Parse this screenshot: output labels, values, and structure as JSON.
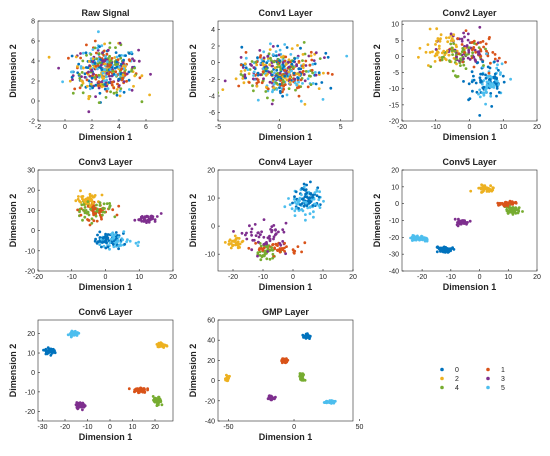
{
  "figure": {
    "colors": {
      "0": "#0072BD",
      "1": "#D95319",
      "2": "#EDB120",
      "3": "#7E2F8E",
      "4": "#77AC30",
      "5": "#4DBEEE"
    },
    "legend": {
      "entries": [
        "0",
        "1",
        "2",
        "3",
        "4",
        "5"
      ],
      "placement": "bottom-right"
    }
  },
  "chart_data": [
    {
      "type": "scatter",
      "title": "Raw Signal",
      "xlabel": "Dimension 1",
      "ylabel": "Dimension 2",
      "xlim": [
        -2,
        8
      ],
      "ylim": [
        -2,
        8
      ],
      "xticks": [
        "-2",
        "0",
        "2",
        "4",
        "6"
      ],
      "yticks": [
        "-2",
        "0",
        "2",
        "4",
        "6",
        "8"
      ],
      "clusters": [
        {
          "class": "0",
          "center": [
            3,
            3
          ],
          "spread": [
            2.0,
            2.0
          ],
          "n": 70
        },
        {
          "class": "1",
          "center": [
            3,
            3
          ],
          "spread": [
            2.0,
            2.0
          ],
          "n": 70
        },
        {
          "class": "2",
          "center": [
            3,
            3
          ],
          "spread": [
            2.0,
            2.0
          ],
          "n": 70
        },
        {
          "class": "3",
          "center": [
            3,
            3
          ],
          "spread": [
            2.0,
            2.0
          ],
          "n": 70
        },
        {
          "class": "4",
          "center": [
            3,
            3
          ],
          "spread": [
            2.0,
            2.0
          ],
          "n": 70
        },
        {
          "class": "5",
          "center": [
            3,
            3
          ],
          "spread": [
            2.0,
            2.0
          ],
          "n": 70
        }
      ]
    },
    {
      "type": "scatter",
      "title": "Conv1 Layer",
      "xlabel": "Dimension 1",
      "ylabel": "Dimension 2",
      "xlim": [
        -5,
        6
      ],
      "ylim": [
        -7,
        5
      ],
      "xticks": [
        "-5",
        "0",
        "5"
      ],
      "yticks": [
        "-6",
        "-4",
        "-2",
        "0",
        "2",
        "4"
      ],
      "clusters": [
        {
          "class": "0",
          "center": [
            0,
            -1
          ],
          "spread": [
            2.6,
            2.4
          ],
          "n": 70
        },
        {
          "class": "1",
          "center": [
            0,
            -1
          ],
          "spread": [
            2.6,
            2.4
          ],
          "n": 70
        },
        {
          "class": "2",
          "center": [
            0,
            -1
          ],
          "spread": [
            2.6,
            2.4
          ],
          "n": 70
        },
        {
          "class": "3",
          "center": [
            0,
            -1
          ],
          "spread": [
            2.6,
            2.4
          ],
          "n": 70
        },
        {
          "class": "4",
          "center": [
            0,
            -1
          ],
          "spread": [
            2.6,
            2.4
          ],
          "n": 70
        },
        {
          "class": "5",
          "center": [
            0,
            -1
          ],
          "spread": [
            2.6,
            2.4
          ],
          "n": 70
        }
      ]
    },
    {
      "type": "scatter",
      "title": "Conv2 Layer",
      "xlabel": "Dimension 1",
      "ylabel": "Dimension 2",
      "xlim": [
        -20,
        20
      ],
      "ylim": [
        -20,
        11
      ],
      "xticks": [
        "-20",
        "-10",
        "0",
        "10",
        "20"
      ],
      "yticks": [
        "-20",
        "-15",
        "-10",
        "-5",
        "0",
        "5",
        "10"
      ],
      "clusters": [
        {
          "class": "0",
          "center": [
            5,
            -7
          ],
          "spread": [
            4,
            5
          ],
          "n": 60
        },
        {
          "class": "1",
          "center": [
            2,
            2
          ],
          "spread": [
            6,
            5
          ],
          "n": 45
        },
        {
          "class": "2",
          "center": [
            -8,
            2
          ],
          "spread": [
            5,
            4
          ],
          "n": 55
        },
        {
          "class": "3",
          "center": [
            -1,
            2
          ],
          "spread": [
            6,
            5
          ],
          "n": 50
        },
        {
          "class": "4",
          "center": [
            -4,
            0
          ],
          "spread": [
            5,
            4
          ],
          "n": 50
        },
        {
          "class": "5",
          "center": [
            6,
            -8
          ],
          "spread": [
            4,
            5
          ],
          "n": 60
        }
      ]
    },
    {
      "type": "scatter",
      "title": "Conv3 Layer",
      "xlabel": "Dimension 1",
      "ylabel": "Dimension 2",
      "xlim": [
        -20,
        20
      ],
      "ylim": [
        -20,
        30
      ],
      "xticks": [
        "-20",
        "-10",
        "0",
        "10",
        "20"
      ],
      "yticks": [
        "-20",
        "-10",
        "0",
        "10",
        "20",
        "30"
      ],
      "clusters": [
        {
          "class": "0",
          "center": [
            0,
            -5
          ],
          "spread": [
            3.5,
            3
          ],
          "n": 60
        },
        {
          "class": "1",
          "center": [
            -3,
            10
          ],
          "spread": [
            5,
            4
          ],
          "n": 45
        },
        {
          "class": "2",
          "center": [
            -5,
            15
          ],
          "spread": [
            3,
            2.5
          ],
          "n": 45
        },
        {
          "class": "3",
          "center": [
            12,
            6
          ],
          "spread": [
            3,
            2
          ],
          "n": 40
        },
        {
          "class": "4",
          "center": [
            -3,
            10
          ],
          "spread": [
            4,
            4
          ],
          "n": 45
        },
        {
          "class": "5",
          "center": [
            3,
            -5
          ],
          "spread": [
            4,
            3
          ],
          "n": 55
        }
      ]
    },
    {
      "type": "scatter",
      "title": "Conv4 Layer",
      "xlabel": "Dimension 1",
      "ylabel": "Dimension 2",
      "xlim": [
        -25,
        20
      ],
      "ylim": [
        -16,
        20
      ],
      "xticks": [
        "-20",
        "-10",
        "0",
        "10",
        "20"
      ],
      "yticks": [
        "-10",
        "0",
        "10",
        "20"
      ],
      "clusters": [
        {
          "class": "0",
          "center": [
            5,
            10
          ],
          "spread": [
            4,
            3.5
          ],
          "n": 60
        },
        {
          "class": "1",
          "center": [
            -5,
            -8
          ],
          "spread": [
            6,
            2
          ],
          "n": 40
        },
        {
          "class": "2",
          "center": [
            -19,
            -6
          ],
          "spread": [
            2.5,
            2
          ],
          "n": 35
        },
        {
          "class": "3",
          "center": [
            -9,
            -4
          ],
          "spread": [
            6,
            4
          ],
          "n": 55
        },
        {
          "class": "4",
          "center": [
            -9,
            -9
          ],
          "spread": [
            3,
            2.5
          ],
          "n": 40
        },
        {
          "class": "5",
          "center": [
            4,
            8
          ],
          "spread": [
            5,
            4
          ],
          "n": 60
        }
      ]
    },
    {
      "type": "scatter",
      "title": "Conv5 Layer",
      "xlabel": "Dimension 1",
      "ylabel": "Dimension 2",
      "xlim": [
        -27,
        20
      ],
      "ylim": [
        -40,
        20
      ],
      "xticks": [
        "-20",
        "-10",
        "0",
        "10",
        "20"
      ],
      "yticks": [
        "-40",
        "-30",
        "-20",
        "-10",
        "0",
        "10",
        "20"
      ],
      "clusters": [
        {
          "class": "0",
          "center": [
            -12,
            -27
          ],
          "spread": [
            2.5,
            1.5
          ],
          "n": 55
        },
        {
          "class": "1",
          "center": [
            10,
            0
          ],
          "spread": [
            3,
            1.2
          ],
          "n": 40
        },
        {
          "class": "2",
          "center": [
            2,
            9
          ],
          "spread": [
            2.5,
            1.5
          ],
          "n": 40
        },
        {
          "class": "3",
          "center": [
            -6,
            -11
          ],
          "spread": [
            2,
            1.5
          ],
          "n": 35
        },
        {
          "class": "4",
          "center": [
            11,
            -4
          ],
          "spread": [
            2,
            2
          ],
          "n": 45
        },
        {
          "class": "5",
          "center": [
            -21,
            -21
          ],
          "spread": [
            2.5,
            1.5
          ],
          "n": 55
        }
      ]
    },
    {
      "type": "scatter",
      "title": "Conv6 Layer",
      "xlabel": "Dimension 1",
      "ylabel": "Dimension 2",
      "xlim": [
        -32,
        28
      ],
      "ylim": [
        -25,
        27
      ],
      "xticks": [
        "-30",
        "-20",
        "-10",
        "0",
        "10",
        "20"
      ],
      "yticks": [
        "-20",
        "-10",
        "0",
        "10",
        "20"
      ],
      "clusters": [
        {
          "class": "0",
          "center": [
            -27,
            11
          ],
          "spread": [
            1.8,
            1.2
          ],
          "n": 55
        },
        {
          "class": "1",
          "center": [
            13,
            -9
          ],
          "spread": [
            2.5,
            1.2
          ],
          "n": 40
        },
        {
          "class": "2",
          "center": [
            23,
            14
          ],
          "spread": [
            1.5,
            1.3
          ],
          "n": 40
        },
        {
          "class": "3",
          "center": [
            -13,
            -17
          ],
          "spread": [
            2,
            1.2
          ],
          "n": 45
        },
        {
          "class": "4",
          "center": [
            21,
            -15
          ],
          "spread": [
            1.5,
            2
          ],
          "n": 45
        },
        {
          "class": "5",
          "center": [
            -16,
            20
          ],
          "spread": [
            1.5,
            1.2
          ],
          "n": 45
        }
      ]
    },
    {
      "type": "scatter",
      "title": "GMP Layer",
      "xlabel": "Dimension 1",
      "ylabel": "Dimension 2",
      "xlim": [
        -58,
        45
      ],
      "ylim": [
        -40,
        60
      ],
      "xticks": [
        "-50",
        "0",
        "50"
      ],
      "yticks": [
        "-40",
        "-20",
        "0",
        "20",
        "40",
        "60"
      ],
      "clusters": [
        {
          "class": "0",
          "center": [
            10,
            44
          ],
          "spread": [
            2,
            1.8
          ],
          "n": 40
        },
        {
          "class": "1",
          "center": [
            -7,
            20
          ],
          "spread": [
            2,
            1.8
          ],
          "n": 35
        },
        {
          "class": "2",
          "center": [
            -51,
            2
          ],
          "spread": [
            1.3,
            2
          ],
          "n": 30
        },
        {
          "class": "3",
          "center": [
            -17,
            -17
          ],
          "spread": [
            2,
            1.5
          ],
          "n": 35
        },
        {
          "class": "4",
          "center": [
            6,
            4
          ],
          "spread": [
            1.5,
            3
          ],
          "n": 35
        },
        {
          "class": "5",
          "center": [
            27,
            -21
          ],
          "spread": [
            2.5,
            1.2
          ],
          "n": 40
        }
      ]
    }
  ]
}
